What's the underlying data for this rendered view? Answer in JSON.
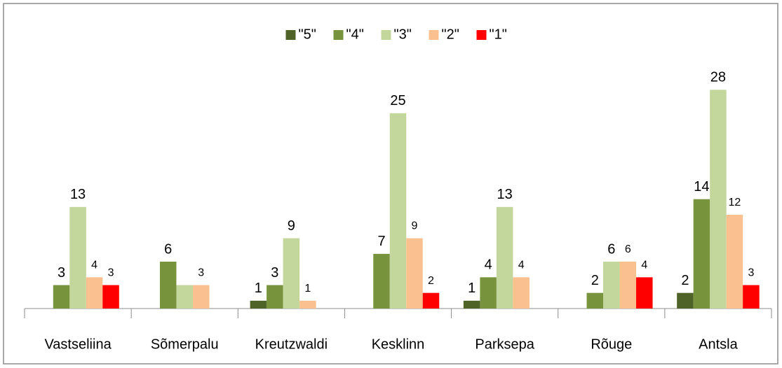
{
  "chart_data": {
    "type": "bar",
    "categories": [
      "Vastseliina",
      "Sõmerpalu",
      "Kreutzwaldi",
      "Kesklinn",
      "Parksepa",
      "Rõuge",
      "Antsla"
    ],
    "series": [
      {
        "name": "\"5\"",
        "color": "#4f6228",
        "values": [
          null,
          null,
          1,
          null,
          1,
          null,
          2
        ]
      },
      {
        "name": "\"4\"",
        "color": "#77933c",
        "values": [
          3,
          6,
          3,
          7,
          4,
          2,
          14
        ]
      },
      {
        "name": "\"3\"",
        "color": "#c3d69b",
        "values": [
          13,
          3,
          9,
          25,
          13,
          6,
          28
        ],
        "value_labels": [
          "13",
          null,
          "9",
          "25",
          "13",
          "6",
          "28"
        ]
      },
      {
        "name": "\"2\"",
        "color": "#fac090",
        "values": [
          4,
          3,
          1,
          9,
          4,
          6,
          12
        ]
      },
      {
        "name": "\"1\"",
        "color": "#ff0000",
        "values": [
          3,
          null,
          null,
          2,
          null,
          4,
          3
        ]
      }
    ],
    "ylim": [
      0,
      30
    ],
    "legend": "top"
  }
}
